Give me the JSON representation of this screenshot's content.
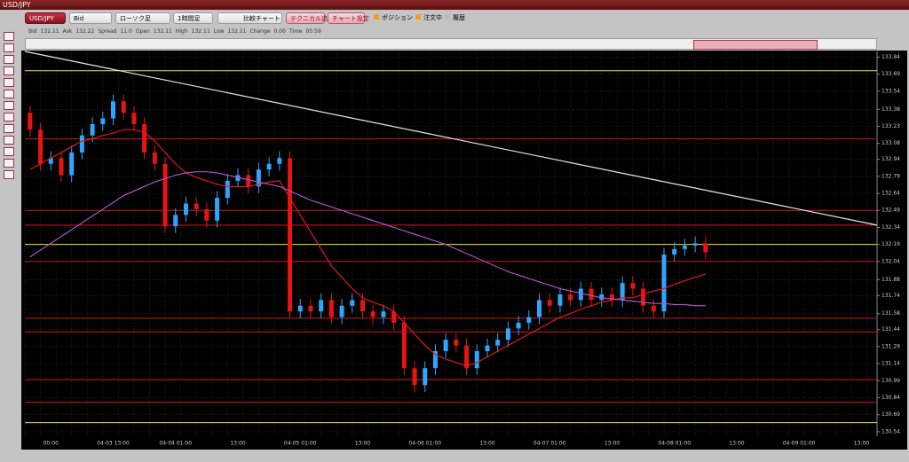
{
  "window": {
    "title": "USD/JPY"
  },
  "toolbar": {
    "symbol": "USD/JPY",
    "price_side": "Bid",
    "chart_kind": "ローソク足",
    "period": "1時間足",
    "compare": "比較チャート",
    "add_technical": "テクニカル追加",
    "settings": "チャート設定",
    "toggles": [
      "ポジション",
      "注文中",
      "履歴"
    ]
  },
  "info": [
    {
      "label": "Bid",
      "value": "132.11"
    },
    {
      "label": "Ask",
      "value": "132.22"
    },
    {
      "label": "Spread",
      "value": "11.0"
    },
    {
      "label": "Open",
      "value": "132.11"
    },
    {
      "label": "High",
      "value": "132.11"
    },
    {
      "label": "Low",
      "value": "132.11"
    },
    {
      "label": "Change",
      "value": "0.00"
    },
    {
      "label": "Time",
      "value": "05:59"
    }
  ],
  "chart_data": {
    "type": "candlestick",
    "categories": [
      null,
      null,
      "00:00",
      null,
      null,
      null,
      null,
      null,
      "04-03 13:00",
      null,
      null,
      null,
      null,
      null,
      "04-04 01:00",
      null,
      null,
      null,
      null,
      null,
      "13:00",
      null,
      null,
      null,
      null,
      null,
      "04-05 01:00",
      null,
      null,
      null,
      null,
      null,
      "13:00",
      null,
      null,
      null,
      null,
      null,
      "04-06 01:00",
      null,
      null,
      null,
      null,
      null,
      "13:00",
      null,
      null,
      null,
      null,
      null,
      "04-07 01:00",
      null,
      null,
      null,
      null,
      null,
      "13:00",
      null,
      null,
      null,
      null,
      null,
      "04-08 01:00",
      null,
      null,
      null,
      null,
      null,
      "13:00",
      null,
      null,
      null,
      null,
      null,
      "04-09 01:00",
      null,
      null,
      null,
      null,
      null,
      "13:00",
      null
    ],
    "open": [
      133.35,
      133.2,
      132.9,
      132.95,
      132.8,
      133.0,
      133.15,
      133.25,
      133.3,
      133.45,
      133.35,
      133.25,
      133.0,
      132.9,
      132.35,
      132.45,
      132.55,
      132.5,
      132.4,
      132.6,
      132.75,
      132.8,
      132.7,
      132.85,
      132.9,
      132.95,
      131.6,
      131.65,
      131.6,
      131.7,
      131.55,
      131.65,
      131.7,
      131.6,
      131.55,
      131.6,
      131.5,
      131.1,
      130.95,
      131.1,
      131.25,
      131.35,
      131.3,
      131.1,
      131.25,
      131.3,
      131.35,
      131.45,
      131.5,
      131.55,
      131.7,
      131.65,
      131.75,
      131.7,
      131.8,
      131.7,
      131.75,
      131.7,
      131.85,
      131.8,
      131.65,
      131.6,
      132.1,
      132.15,
      132.18,
      132.2,
      null,
      null,
      null,
      null,
      null,
      null,
      null,
      null,
      null,
      null,
      null,
      null,
      null,
      null,
      null,
      null
    ],
    "high": [
      133.41,
      133.26,
      133.01,
      133.01,
      133.06,
      133.21,
      133.31,
      133.36,
      133.51,
      133.51,
      133.41,
      133.31,
      133.06,
      132.96,
      132.51,
      132.61,
      132.61,
      132.56,
      132.66,
      132.81,
      132.86,
      132.86,
      132.91,
      132.96,
      133.01,
      133.01,
      131.71,
      131.71,
      131.76,
      131.76,
      131.71,
      131.76,
      131.76,
      131.66,
      131.66,
      131.66,
      131.56,
      131.16,
      131.16,
      131.31,
      131.41,
      131.41,
      131.36,
      131.31,
      131.36,
      131.41,
      131.51,
      131.56,
      131.61,
      131.76,
      131.76,
      131.81,
      131.81,
      131.86,
      131.86,
      131.81,
      131.81,
      131.91,
      131.91,
      131.86,
      131.71,
      132.16,
      132.21,
      132.24,
      132.26,
      132.26,
      null,
      null,
      null,
      null,
      null,
      null,
      null,
      null,
      null,
      null,
      null,
      null,
      null,
      null,
      null,
      null
    ],
    "low": [
      133.14,
      132.84,
      132.84,
      132.74,
      132.74,
      132.94,
      133.09,
      133.19,
      133.24,
      133.29,
      133.19,
      132.94,
      132.84,
      132.29,
      132.29,
      132.39,
      132.44,
      132.34,
      132.34,
      132.54,
      132.69,
      132.64,
      132.64,
      132.79,
      132.84,
      131.54,
      131.54,
      131.54,
      131.54,
      131.49,
      131.49,
      131.59,
      131.54,
      131.49,
      131.49,
      131.44,
      131.04,
      130.89,
      130.89,
      131.04,
      131.19,
      131.24,
      131.04,
      131.04,
      131.19,
      131.24,
      131.29,
      131.39,
      131.44,
      131.49,
      131.59,
      131.59,
      131.64,
      131.64,
      131.64,
      131.64,
      131.64,
      131.64,
      131.74,
      131.59,
      131.54,
      131.54,
      132.04,
      132.09,
      132.12,
      132.06,
      null,
      null,
      null,
      null,
      null,
      null,
      null,
      null,
      null,
      null,
      null,
      null,
      null,
      null,
      null,
      null
    ],
    "close": [
      133.2,
      132.9,
      132.95,
      132.8,
      133.0,
      133.15,
      133.25,
      133.3,
      133.45,
      133.35,
      133.25,
      133.0,
      132.9,
      132.35,
      132.45,
      132.55,
      132.5,
      132.4,
      132.6,
      132.75,
      132.8,
      132.7,
      132.85,
      132.9,
      132.95,
      131.6,
      131.65,
      131.6,
      131.7,
      131.55,
      131.65,
      131.7,
      131.6,
      131.55,
      131.6,
      131.5,
      131.1,
      130.95,
      131.1,
      131.25,
      131.35,
      131.3,
      131.1,
      131.25,
      131.3,
      131.35,
      131.45,
      131.5,
      131.55,
      131.7,
      131.65,
      131.75,
      131.7,
      131.8,
      131.7,
      131.75,
      131.7,
      131.85,
      131.8,
      131.65,
      131.6,
      132.1,
      132.15,
      132.18,
      132.2,
      132.12,
      null,
      null,
      null,
      null,
      null,
      null,
      null,
      null,
      null,
      null,
      null,
      null,
      null,
      null,
      null,
      null
    ],
    "up_color": "#2ea6ff",
    "down_color": "#e81414",
    "overlays": [
      {
        "color": "#e01818",
        "values": [
          132.85,
          132.9,
          132.95,
          133.0,
          133.05,
          133.1,
          133.12,
          133.15,
          133.17,
          133.2,
          133.2,
          133.18,
          133.1,
          133.0,
          132.9,
          132.82,
          132.78,
          132.75,
          132.72,
          132.7,
          132.7,
          132.7,
          132.72,
          132.74,
          132.75,
          132.6,
          132.45,
          132.3,
          132.15,
          132.0,
          131.9,
          131.8,
          131.72,
          131.68,
          131.65,
          131.6,
          131.5,
          131.4,
          131.3,
          131.22,
          131.18,
          131.15,
          131.12,
          131.15,
          131.2,
          131.25,
          131.3,
          131.35,
          131.4,
          131.45,
          131.5,
          131.55,
          131.58,
          131.62,
          131.65,
          131.68,
          131.7,
          131.72,
          131.72,
          131.75,
          131.78,
          131.8,
          131.84,
          131.87,
          131.9,
          131.93,
          null,
          null,
          null,
          null,
          null,
          null,
          null,
          null,
          null,
          null,
          null,
          null,
          null,
          null,
          null,
          null
        ]
      },
      {
        "color": "#b050c8",
        "values": [
          132.08,
          132.14,
          132.2,
          132.26,
          132.32,
          132.38,
          132.44,
          132.5,
          132.56,
          132.62,
          132.66,
          132.7,
          132.74,
          132.77,
          132.8,
          132.82,
          132.83,
          132.83,
          132.82,
          132.8,
          132.78,
          132.76,
          132.74,
          132.72,
          132.7,
          132.66,
          132.62,
          132.58,
          132.55,
          132.52,
          132.49,
          132.46,
          132.43,
          132.4,
          132.37,
          132.34,
          132.31,
          132.28,
          132.25,
          132.22,
          132.19,
          132.15,
          132.11,
          132.07,
          132.03,
          131.99,
          131.95,
          131.92,
          131.89,
          131.86,
          131.83,
          131.8,
          131.78,
          131.76,
          131.74,
          131.72,
          131.71,
          131.7,
          131.69,
          131.68,
          131.67,
          131.67,
          131.66,
          131.66,
          131.65,
          131.65,
          null,
          null,
          null,
          null,
          null,
          null,
          null,
          null,
          null,
          null,
          null,
          null,
          null,
          null,
          null,
          null
        ]
      }
    ],
    "levels": [
      {
        "color": "#e8e830",
        "value": 133.72
      },
      {
        "color": "#e8e830",
        "value": 132.19
      },
      {
        "color": "#e8e830",
        "value": 130.62
      },
      {
        "color": "#d01818",
        "value": 133.12
      },
      {
        "color": "#d01818",
        "value": 132.49
      },
      {
        "color": "#d01818",
        "value": 132.36
      },
      {
        "color": "#d01818",
        "value": 132.04
      },
      {
        "color": "#d01818",
        "value": 131.54
      },
      {
        "color": "#d01818",
        "value": 131.42
      },
      {
        "color": "#d01818",
        "value": 131.0
      },
      {
        "color": "#d01818",
        "value": 130.8
      }
    ],
    "trendline": {
      "color": "#e8e8e8",
      "values": [
        133.89,
        132.36
      ]
    },
    "ylim": [
      130.5,
      133.89
    ],
    "yticks": [
      133.84,
      133.69,
      133.54,
      133.38,
      133.23,
      133.08,
      132.94,
      132.79,
      132.64,
      132.49,
      132.34,
      132.19,
      132.04,
      131.88,
      131.74,
      131.58,
      131.44,
      131.29,
      131.14,
      130.99,
      130.84,
      130.69,
      130.54
    ],
    "grid": true
  }
}
